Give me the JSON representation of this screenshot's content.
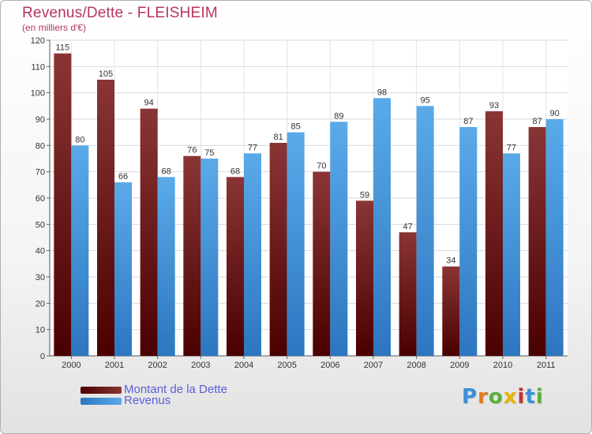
{
  "title": "Revenus/Dette - FLEISHEIM",
  "subtitle": "(en milliers d'€)",
  "logo": "Proxiti",
  "colors": {
    "dette": "#6e1f1f",
    "revenus": "#3d8ed8",
    "title": "#b5365a",
    "legend_text": "#5a5fd9"
  },
  "chart_data": {
    "type": "bar",
    "title": "Revenus/Dette - FLEISHEIM",
    "ylabel": "(en milliers d'€)",
    "ylim": [
      0,
      120
    ],
    "yticks": [
      0,
      10,
      20,
      30,
      40,
      50,
      60,
      70,
      80,
      90,
      100,
      110,
      120
    ],
    "categories": [
      "2000",
      "2001",
      "2002",
      "2003",
      "2004",
      "2005",
      "2006",
      "2007",
      "2008",
      "2009",
      "2010",
      "2011"
    ],
    "series": [
      {
        "name": "Montant de la Dette",
        "values": [
          115,
          105,
          94,
          76,
          68,
          81,
          70,
          59,
          47,
          34,
          93,
          87
        ]
      },
      {
        "name": "Revenus",
        "values": [
          80,
          66,
          68,
          75,
          77,
          85,
          89,
          98,
          95,
          87,
          77,
          90
        ]
      }
    ],
    "grid": true,
    "legend": "bottom-left"
  }
}
